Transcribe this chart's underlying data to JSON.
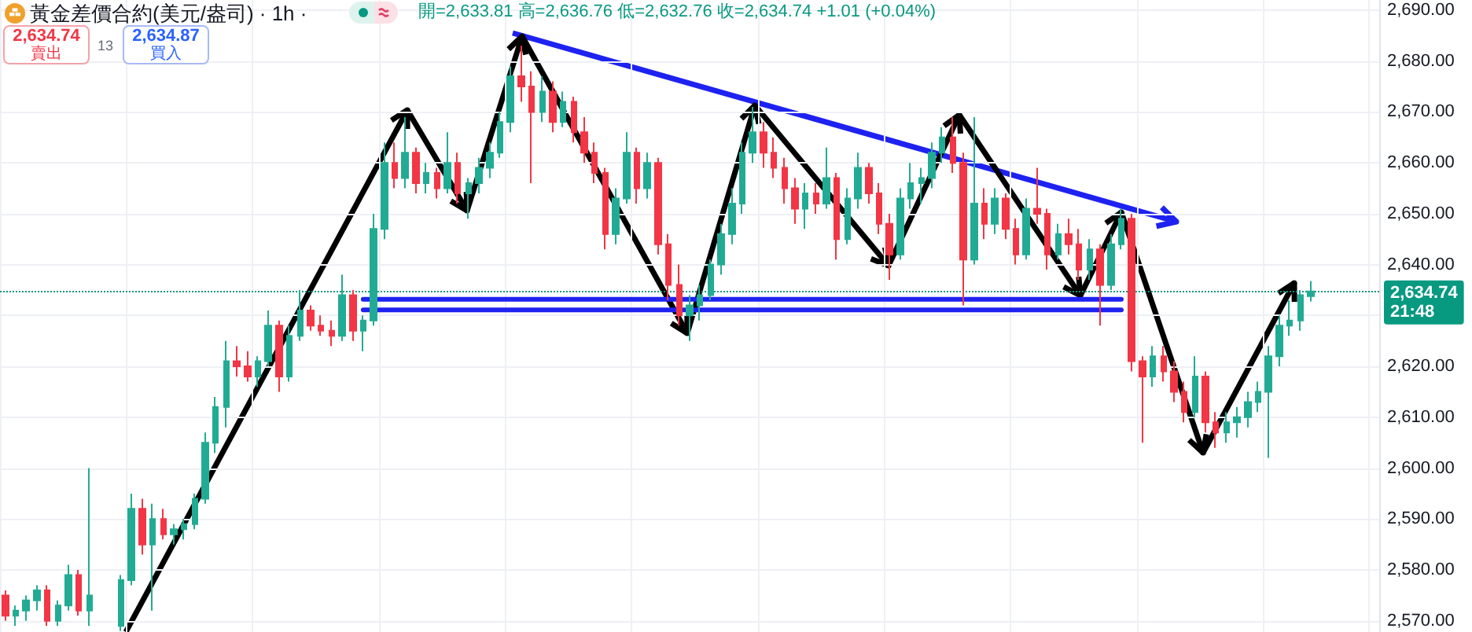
{
  "chart_data": {
    "type": "candlestick",
    "title": "黃金差價合約(美元/盎司) · 1h ·",
    "subtitle": "開=2,633.81 高=2,636.76 低=2,632.76 收=2,634.74 +1.01 (+0.04%)",
    "annotations": [
      "2,634.74",
      "賣出",
      "13",
      "2,634.87",
      "買入",
      "21:48"
    ],
    "categories": [
      null,
      null,
      null,
      null,
      null,
      null,
      null,
      null,
      null,
      null,
      null,
      null,
      null,
      null,
      null,
      null,
      null,
      null,
      null,
      null,
      null,
      null,
      null,
      null,
      null,
      null,
      null,
      null,
      null,
      null,
      null,
      null,
      null,
      null,
      null,
      null,
      null,
      null,
      null,
      null,
      null,
      null,
      null,
      null,
      null,
      null,
      null,
      null,
      null,
      null,
      null,
      null,
      null,
      null,
      null,
      null,
      null,
      null,
      null,
      null,
      null,
      null,
      null,
      null,
      null,
      null,
      null,
      null,
      null,
      null,
      null,
      null,
      null,
      null,
      null,
      null,
      null,
      null,
      null,
      null,
      null,
      null,
      null,
      null,
      null,
      null,
      null,
      null,
      null,
      null,
      null,
      null,
      null,
      null,
      null,
      null,
      null,
      null,
      null,
      null,
      null,
      null,
      null,
      null,
      null,
      null,
      null,
      null,
      null,
      null,
      null,
      null,
      null,
      null,
      null,
      null,
      null,
      null,
      null,
      null,
      null,
      null,
      null,
      null,
      null,
      null,
      null,
      null,
      null,
      null,
      null
    ],
    "ohlc": [
      [
        2575,
        2576,
        2570,
        2571
      ],
      [
        2571,
        2573,
        2569,
        2572
      ],
      [
        2572,
        2575,
        2570,
        2574
      ],
      [
        2574,
        2577,
        2572,
        2576
      ],
      [
        2576,
        2577,
        2569,
        2570
      ],
      [
        2570,
        2574,
        2569,
        2573
      ],
      [
        2573,
        2581,
        2572,
        2579
      ],
      [
        2579,
        2580,
        2571,
        2572
      ],
      [
        2572,
        2600,
        2569,
        2575
      ],
      null,
      null,
      [
        2569,
        2579,
        2568,
        2578
      ],
      [
        2578,
        2595,
        2577,
        2592
      ],
      [
        2592,
        2594,
        2583,
        2585
      ],
      [
        2585,
        2593,
        2572,
        2590
      ],
      [
        2590,
        2592,
        2586,
        2587
      ],
      [
        2587,
        2589,
        2585,
        2588
      ],
      [
        2588,
        2590,
        2586,
        2589
      ],
      [
        2589,
        2595,
        2588,
        2594
      ],
      [
        2594,
        2607,
        2593,
        2605
      ],
      [
        2605,
        2614,
        2603,
        2612
      ],
      [
        2612,
        2625,
        2608,
        2621
      ],
      [
        2621,
        2624,
        2618,
        2620
      ],
      [
        2620,
        2623,
        2617,
        2618
      ],
      [
        2618,
        2622,
        2616,
        2621
      ],
      [
        2621,
        2631,
        2620,
        2628
      ],
      [
        2628,
        2629,
        2615,
        2618
      ],
      [
        2618,
        2628,
        2617,
        2626
      ],
      [
        2626,
        2635,
        2625,
        2631
      ],
      [
        2631,
        2632,
        2627,
        2628
      ],
      [
        2628,
        2630,
        2626,
        2627
      ],
      [
        2627,
        2629,
        2624,
        2626
      ],
      [
        2626,
        2638,
        2625,
        2634
      ],
      [
        2634,
        2635,
        2625,
        2627
      ],
      [
        2627,
        2630,
        2623,
        2629
      ],
      [
        2629,
        2650,
        2628,
        2647
      ],
      [
        2647,
        2664,
        2645,
        2660
      ],
      [
        2660,
        2664,
        2655,
        2657
      ],
      [
        2657,
        2669,
        2655,
        2662
      ],
      [
        2662,
        2663,
        2654,
        2656
      ],
      [
        2656,
        2660,
        2654,
        2658
      ],
      [
        2658,
        2659,
        2653,
        2655
      ],
      [
        2655,
        2666,
        2654,
        2660
      ],
      [
        2660,
        2662,
        2652,
        2654
      ],
      [
        2654,
        2657,
        2649,
        2656
      ],
      [
        2656,
        2661,
        2654,
        2659
      ],
      [
        2659,
        2664,
        2657,
        2662
      ],
      [
        2662,
        2670,
        2661,
        2668
      ],
      [
        2668,
        2679,
        2666,
        2677
      ],
      [
        2677,
        2683,
        2672,
        2675
      ],
      [
        2675,
        2678,
        2656,
        2670
      ],
      [
        2670,
        2677,
        2668,
        2674
      ],
      [
        2674,
        2676,
        2666,
        2668
      ],
      [
        2668,
        2674,
        2667,
        2672
      ],
      [
        2672,
        2673,
        2664,
        2666
      ],
      [
        2666,
        2669,
        2660,
        2662
      ],
      [
        2662,
        2664,
        2656,
        2658
      ],
      [
        2658,
        2659,
        2643,
        2646
      ],
      [
        2646,
        2655,
        2644,
        2653
      ],
      [
        2653,
        2666,
        2652,
        2662
      ],
      [
        2662,
        2663,
        2652,
        2655
      ],
      [
        2655,
        2662,
        2653,
        2660
      ],
      [
        2660,
        2661,
        2642,
        2644
      ],
      [
        2644,
        2646,
        2633,
        2636
      ],
      [
        2636,
        2640,
        2628,
        2630
      ],
      [
        2630,
        2634,
        2625,
        2632
      ],
      [
        2632,
        2636,
        2629,
        2634
      ],
      [
        2634,
        2641,
        2633,
        2640
      ],
      [
        2640,
        2648,
        2638,
        2646
      ],
      [
        2646,
        2655,
        2644,
        2652
      ],
      [
        2652,
        2664,
        2650,
        2662
      ],
      [
        2662,
        2671,
        2660,
        2666
      ],
      [
        2666,
        2668,
        2659,
        2662
      ],
      [
        2662,
        2665,
        2657,
        2659
      ],
      [
        2659,
        2661,
        2652,
        2655
      ],
      [
        2655,
        2657,
        2648,
        2651
      ],
      [
        2651,
        2656,
        2647,
        2654
      ],
      [
        2654,
        2656,
        2650,
        2652
      ],
      [
        2652,
        2663,
        2651,
        2657
      ],
      [
        2657,
        2658,
        2641,
        2645
      ],
      [
        2645,
        2655,
        2644,
        2653
      ],
      [
        2653,
        2662,
        2651,
        2659
      ],
      [
        2659,
        2660,
        2652,
        2654
      ],
      [
        2654,
        2656,
        2646,
        2648
      ],
      [
        2648,
        2650,
        2637,
        2642
      ],
      [
        2642,
        2655,
        2641,
        2653
      ],
      [
        2653,
        2660,
        2651,
        2656
      ],
      [
        2656,
        2659,
        2652,
        2657
      ],
      [
        2657,
        2664,
        2655,
        2662
      ],
      [
        2662,
        2667,
        2660,
        2665
      ],
      [
        2665,
        2669,
        2658,
        2660
      ],
      [
        2660,
        2662,
        2632,
        2641
      ],
      [
        2641,
        2669,
        2640,
        2652
      ],
      [
        2652,
        2655,
        2645,
        2648
      ],
      [
        2648,
        2655,
        2646,
        2653
      ],
      [
        2653,
        2654,
        2645,
        2647
      ],
      [
        2647,
        2649,
        2640,
        2642
      ],
      [
        2642,
        2653,
        2641,
        2651
      ],
      [
        2651,
        2659,
        2648,
        2650
      ],
      [
        2650,
        2651,
        2639,
        2642
      ],
      [
        2642,
        2648,
        2641,
        2646
      ],
      [
        2646,
        2649,
        2642,
        2644
      ],
      [
        2644,
        2647,
        2637,
        2639
      ],
      [
        2639,
        2645,
        2637,
        2643
      ],
      [
        2643,
        2644,
        2628,
        2636
      ],
      [
        2636,
        2646,
        2635,
        2644
      ],
      [
        2644,
        2651,
        2643,
        2649
      ],
      [
        2649,
        2650,
        2619,
        2621
      ],
      [
        2621,
        2622,
        2605,
        2618
      ],
      [
        2618,
        2624,
        2616,
        2622
      ],
      [
        2622,
        2624,
        2617,
        2619
      ],
      [
        2619,
        2621,
        2613,
        2615
      ],
      [
        2615,
        2617,
        2609,
        2611
      ],
      [
        2611,
        2622,
        2610,
        2618
      ],
      [
        2618,
        2619,
        2607,
        2609
      ],
      [
        2609,
        2611,
        2604,
        2607
      ],
      [
        2607,
        2611,
        2605,
        2609
      ],
      [
        2609,
        2612,
        2606,
        2610
      ],
      [
        2610,
        2615,
        2608,
        2613
      ],
      [
        2613,
        2617,
        2611,
        2615
      ],
      [
        2615,
        2624,
        2602,
        2622
      ],
      [
        2622,
        2630,
        2620,
        2628
      ],
      [
        2628,
        2633,
        2626,
        2629
      ],
      [
        2629,
        2635,
        2627,
        2634
      ],
      [
        2633.81,
        2636.76,
        2632.76,
        2634.74
      ],
      null,
      null,
      null,
      null,
      null,
      null
    ],
    "series": [
      {
        "type": "line",
        "color": "#1e22f0",
        "values": [
          null,
          null,
          null,
          null,
          null,
          null,
          null,
          null,
          null,
          null,
          null,
          null,
          null,
          null,
          null,
          null,
          null,
          null,
          null,
          null,
          null,
          null,
          null,
          null,
          null,
          null,
          null,
          null,
          null,
          null,
          null,
          null,
          null,
          null,
          2633.2,
          2633.2,
          2633.2,
          2633.2,
          2633.2,
          2633.2,
          2633.2,
          2633.2,
          2633.2,
          2633.2,
          2633.2,
          2633.2,
          2633.2,
          2633.2,
          2633.2,
          2633.2,
          2633.2,
          2633.2,
          2633.2,
          2633.2,
          2633.2,
          2633.2,
          2633.2,
          2633.2,
          2633.2,
          2633.2,
          2633.2,
          2633.2,
          2633.2,
          2633.2,
          2633.2,
          2633.2,
          2633.2,
          2633.2,
          2633.2,
          2633.2,
          2633.2,
          2633.2,
          2633.2,
          2633.2,
          2633.2,
          2633.2,
          2633.2,
          2633.2,
          2633.2,
          2633.2,
          2633.2,
          2633.2,
          2633.2,
          2633.2,
          2633.2,
          2633.2,
          2633.2,
          2633.2,
          2633.2,
          2633.2,
          2633.2,
          2633.2,
          2633.2,
          2633.2,
          2633.2,
          2633.2,
          2633.2,
          2633.2,
          2633.2,
          2633.2,
          2633.2,
          2633.2,
          2633.2,
          2633.2,
          2633.2,
          2633.2,
          2633.2,
          null,
          null,
          null,
          null,
          null,
          null,
          null,
          null,
          null,
          null,
          null,
          null,
          null,
          null,
          null,
          null,
          null,
          null,
          null,
          null,
          null,
          null,
          null,
          null
        ]
      },
      {
        "type": "line",
        "color": "#1e22f0",
        "values": [
          null,
          null,
          null,
          null,
          null,
          null,
          null,
          null,
          null,
          null,
          null,
          null,
          null,
          null,
          null,
          null,
          null,
          null,
          null,
          null,
          null,
          null,
          null,
          null,
          null,
          null,
          null,
          null,
          null,
          null,
          null,
          null,
          null,
          null,
          2631.1,
          2631.1,
          2631.1,
          2631.1,
          2631.1,
          2631.1,
          2631.1,
          2631.1,
          2631.1,
          2631.1,
          2631.1,
          2631.1,
          2631.1,
          2631.1,
          2631.1,
          2631.1,
          2631.1,
          2631.1,
          2631.1,
          2631.1,
          2631.1,
          2631.1,
          2631.1,
          2631.1,
          2631.1,
          2631.1,
          2631.1,
          2631.1,
          2631.1,
          2631.1,
          2631.1,
          2631.1,
          2631.1,
          2631.1,
          2631.1,
          2631.1,
          2631.1,
          2631.1,
          2631.1,
          2631.1,
          2631.1,
          2631.1,
          2631.1,
          2631.1,
          2631.1,
          2631.1,
          2631.1,
          2631.1,
          2631.1,
          2631.1,
          2631.1,
          2631.1,
          2631.1,
          2631.1,
          2631.1,
          2631.1,
          2631.1,
          2631.1,
          2631.1,
          2631.1,
          2631.1,
          2631.1,
          2631.1,
          2631.1,
          2631.1,
          2631.1,
          2631.1,
          2631.1,
          2631.1,
          2631.1,
          2631.1,
          2631.1,
          2631.1,
          null,
          null,
          null,
          null,
          null,
          null,
          null,
          null,
          null,
          null,
          null,
          null,
          null,
          null,
          null,
          null,
          null,
          null,
          null,
          null,
          null,
          null,
          null,
          null
        ]
      }
    ],
    "ylim": [
      2567.8,
      2692
    ],
    "yticks": [
      {
        "value": 2570,
        "label": "2,570.00"
      },
      {
        "value": 2580,
        "label": "2,580.00"
      },
      {
        "value": 2590,
        "label": "2,590.00"
      },
      {
        "value": 2600,
        "label": "2,600.00"
      },
      {
        "value": 2610,
        "label": "2,610.00"
      },
      {
        "value": 2620,
        "label": "2,620.00"
      },
      {
        "value": 2630,
        "label": null
      },
      {
        "value": 2640,
        "label": "2,640.00"
      },
      {
        "value": 2650,
        "label": "2,650.00"
      },
      {
        "value": 2660,
        "label": "2,660.00"
      },
      {
        "value": 2670,
        "label": "2,670.00"
      },
      {
        "value": 2680,
        "label": "2,680.00"
      },
      {
        "value": 2690,
        "label": "2,690.00"
      }
    ],
    "ref_lines": [
      {
        "axis": "y",
        "value": 2634.74,
        "label": "2,634.74",
        "color": "#089981",
        "line_style": "dotted"
      }
    ],
    "grid": true,
    "tick_labels": "y"
  }
}
